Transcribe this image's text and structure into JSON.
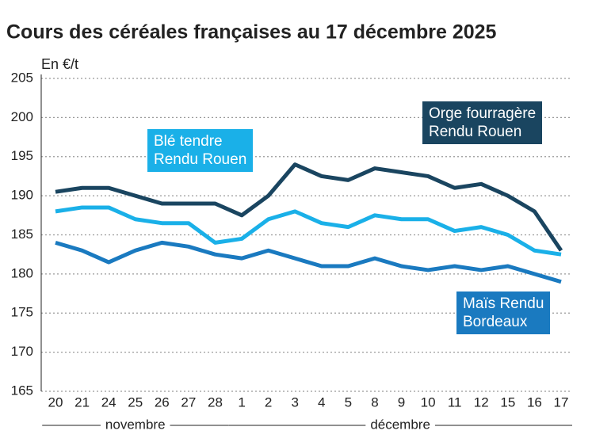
{
  "chart_data": {
    "type": "line",
    "title": "Cours des céréales françaises au 17 décembre 2025",
    "y_label": "En €/t",
    "categories": [
      "20",
      "21",
      "24",
      "25",
      "26",
      "27",
      "28",
      "1",
      "2",
      "3",
      "4",
      "5",
      "8",
      "9",
      "10",
      "11",
      "12",
      "15",
      "16",
      "17"
    ],
    "category_groups": [
      {
        "label": "novembre",
        "count": 7
      },
      {
        "label": "décembre",
        "count": 13
      }
    ],
    "ylim": [
      165,
      205
    ],
    "yticks": [
      165,
      170,
      175,
      180,
      185,
      190,
      195,
      200,
      205
    ],
    "grid": true,
    "series": [
      {
        "name": "Orge fourragère\nRendu Rouen",
        "color": "#1a4560",
        "values": [
          190.5,
          191,
          191,
          190,
          189,
          189,
          189,
          187.5,
          190,
          194,
          192.5,
          192,
          193.5,
          193,
          192.5,
          191,
          191.5,
          190,
          188,
          183
        ]
      },
      {
        "name": "Blé tendre\nRendu Rouen",
        "color": "#1ab0e8",
        "values": [
          188,
          188.5,
          188.5,
          187,
          186.5,
          186.5,
          184,
          184.5,
          187,
          188,
          186.5,
          186,
          187.5,
          187,
          187,
          185.5,
          186,
          185,
          183,
          182.5
        ]
      },
      {
        "name": "Maïs Rendu\nBordeaux",
        "color": "#1a7ac0",
        "values": [
          184,
          183,
          181.5,
          183,
          184,
          183.5,
          182.5,
          182,
          183,
          182,
          181,
          181,
          182,
          181,
          180.5,
          181,
          180.5,
          181,
          180,
          179
        ]
      }
    ]
  }
}
